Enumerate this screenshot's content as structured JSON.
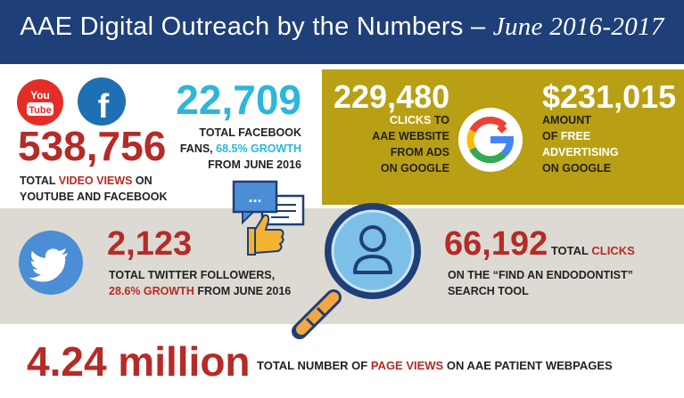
{
  "header": {
    "title_main": "AAE Digital Outreach by the Numbers –",
    "title_date": "June 2016-2017"
  },
  "icons": {
    "youtube_text_1": "You",
    "youtube_text_2": "Tube",
    "facebook_letter": "f",
    "chat_dots": "...",
    "colors": {
      "youtube": "#e52d27",
      "facebook": "#1f6fb5",
      "twitter": "#4b8ed6",
      "gold": "#b99f14",
      "red": "#b52b27",
      "teal": "#2cb6dc",
      "navy": "#1e3f77"
    }
  },
  "video": {
    "value": "538,756",
    "line1_a": "Total ",
    "line1_hl": "video views",
    "line1_b": " on",
    "line2": "YouTube and Facebook"
  },
  "facebook": {
    "value": "22,709",
    "line1": "Total Facebook",
    "line2_a": "fans, ",
    "line2_hl": "68.5% growth",
    "line3": "from June 2016"
  },
  "google_clicks": {
    "value": "229,480",
    "line1_hl": "clicks",
    "line1_b": " to",
    "line2": "AAE website",
    "line3": "from ads",
    "line4": "on Google"
  },
  "google_advertising": {
    "value": "$231,015",
    "line1": "amount",
    "line2_a": "of ",
    "line2_hl": "free",
    "line3_hl": "advertising",
    "line4": "on Google"
  },
  "twitter": {
    "value": "2,123",
    "line1": "Total Twitter followers,",
    "line2_hl": "28.6% growth",
    "line2_b": " from June 2016"
  },
  "search_tool": {
    "value": "66,192",
    "inline_a": " total ",
    "inline_hl": "clicks",
    "line2": "on the “Find an Endodontist”",
    "line3": "search tool"
  },
  "page_views": {
    "value": "4.24 million",
    "text_a": "Total number of ",
    "text_hl": "page views",
    "text_b": " on AAE patient webpages"
  }
}
